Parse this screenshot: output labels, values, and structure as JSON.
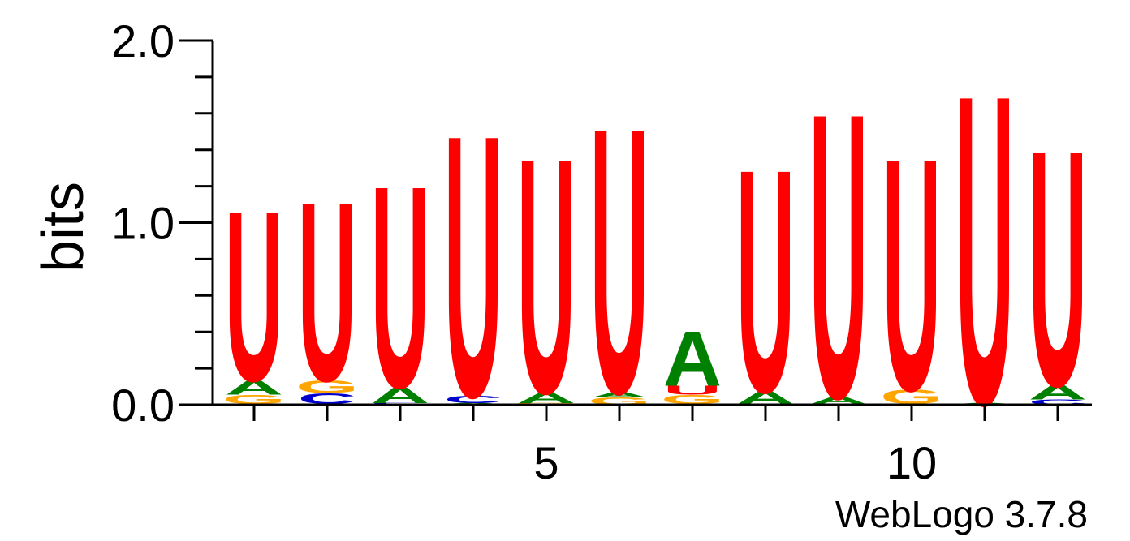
{
  "chart_data": {
    "type": "sequence-logo",
    "ylabel": "bits",
    "ylim": [
      0,
      2
    ],
    "yticks": [
      "0.0",
      "1.0",
      "2.0"
    ],
    "xticks": [
      {
        "position": 5,
        "label": "5"
      },
      {
        "position": 10,
        "label": "10"
      }
    ],
    "footer": "WebLogo 3.7.8",
    "colors": {
      "U": "#ff0000",
      "A": "#008000",
      "G": "#ffa500",
      "C": "#0000cc"
    },
    "positions": [
      {
        "pos": 1,
        "stack": [
          {
            "letter": "C",
            "bits": 0.005
          },
          {
            "letter": "G",
            "bits": 0.05
          },
          {
            "letter": "A",
            "bits": 0.08
          },
          {
            "letter": "U",
            "bits": 0.96
          }
        ]
      },
      {
        "pos": 2,
        "stack": [
          {
            "letter": "A",
            "bits": 0.005
          },
          {
            "letter": "C",
            "bits": 0.06
          },
          {
            "letter": "G",
            "bits": 0.07
          },
          {
            "letter": "U",
            "bits": 1.01
          }
        ]
      },
      {
        "pos": 3,
        "stack": [
          {
            "letter": "G",
            "bits": 0.005
          },
          {
            "letter": "C",
            "bits": 0.005
          },
          {
            "letter": "A",
            "bits": 0.09
          },
          {
            "letter": "U",
            "bits": 1.14
          }
        ]
      },
      {
        "pos": 4,
        "stack": [
          {
            "letter": "G",
            "bits": 0.005
          },
          {
            "letter": "A",
            "bits": 0.005
          },
          {
            "letter": "C",
            "bits": 0.04
          },
          {
            "letter": "U",
            "bits": 1.48
          }
        ]
      },
      {
        "pos": 5,
        "stack": [
          {
            "letter": "C",
            "bits": 0.005
          },
          {
            "letter": "G",
            "bits": 0.005
          },
          {
            "letter": "A",
            "bits": 0.06
          },
          {
            "letter": "U",
            "bits": 1.33
          }
        ]
      },
      {
        "pos": 6,
        "stack": [
          {
            "letter": "G",
            "bits": 0.04
          },
          {
            "letter": "A",
            "bits": 0.03
          },
          {
            "letter": "U",
            "bits": 1.5
          }
        ]
      },
      {
        "pos": 7,
        "stack": [
          {
            "letter": "C",
            "bits": 0.005
          },
          {
            "letter": "G",
            "bits": 0.05
          },
          {
            "letter": "U",
            "bits": 0.05
          },
          {
            "letter": "A",
            "bits": 0.31
          }
        ]
      },
      {
        "pos": 8,
        "stack": [
          {
            "letter": "G",
            "bits": 0.005
          },
          {
            "letter": "A",
            "bits": 0.07
          },
          {
            "letter": "U",
            "bits": 1.26
          }
        ]
      },
      {
        "pos": 9,
        "stack": [
          {
            "letter": "G",
            "bits": 0.005
          },
          {
            "letter": "A",
            "bits": 0.04
          },
          {
            "letter": "U",
            "bits": 1.61
          }
        ]
      },
      {
        "pos": 10,
        "stack": [
          {
            "letter": "C",
            "bits": 0.005
          },
          {
            "letter": "G",
            "bits": 0.08
          },
          {
            "letter": "U",
            "bits": 1.31
          }
        ]
      },
      {
        "pos": 11,
        "stack": [
          {
            "letter": "G",
            "bits": 0.005
          },
          {
            "letter": "A",
            "bits": 0.005
          },
          {
            "letter": "U",
            "bits": 1.75
          }
        ]
      },
      {
        "pos": 12,
        "stack": [
          {
            "letter": "C",
            "bits": 0.03
          },
          {
            "letter": "A",
            "bits": 0.08
          },
          {
            "letter": "U",
            "bits": 1.33
          }
        ]
      }
    ]
  }
}
